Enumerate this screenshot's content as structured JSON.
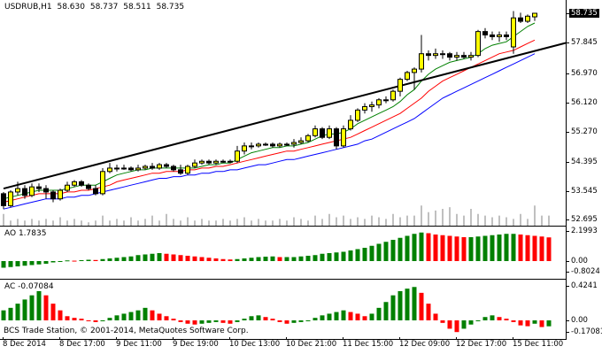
{
  "symbol_label": "USDRUB,H1",
  "ohlc": {
    "open": "58.630",
    "high": "58.737",
    "low": "58.511",
    "close": "58.735"
  },
  "price_axis": {
    "ticks": [
      "57.845",
      "56.970",
      "56.120",
      "55.270",
      "54.395",
      "53.545",
      "52.695"
    ],
    "current": "58.735"
  },
  "ao": {
    "label": "AO 1.7835",
    "ticks": [
      "2.1993",
      "0.00",
      "-0.8024"
    ]
  },
  "ac": {
    "label": "AC -0.07084",
    "ticks": [
      "0.4241",
      "0.00",
      "-0.17081"
    ]
  },
  "time_axis": [
    "8 Dec 2014",
    "8 Dec 17:00",
    "9 Dec 11:00",
    "9 Dec 19:00",
    "10 Dec 13:00",
    "10 Dec 21:00",
    "11 Dec 15:00",
    "12 Dec 09:00",
    "12 Dec 17:00",
    "15 Dec 11:00"
  ],
  "copyright": "BCS Trade Station, © 2001-2014, MetaQuotes Software Corp.",
  "colors": {
    "bull_candle": "#ffff00",
    "bear_candle": "#000000",
    "ma_fast": "#008000",
    "ma_mid": "#ff0000",
    "ma_slow": "#0000ff",
    "trendline": "#000000",
    "up_bar": "#008000",
    "down_bar": "#ff0000",
    "volume": "#808080"
  },
  "chart_data": [
    {
      "type": "candlestick",
      "title": "USDRUB,H1",
      "ylim": [
        52.695,
        58.735
      ],
      "candles": [
        [
          53.45,
          53.5,
          53.0,
          53.1
        ],
        [
          53.1,
          53.55,
          53.05,
          53.5
        ],
        [
          53.5,
          53.8,
          53.4,
          53.6
        ],
        [
          53.6,
          53.7,
          53.3,
          53.4
        ],
        [
          53.4,
          53.75,
          53.35,
          53.65
        ],
        [
          53.65,
          53.75,
          53.5,
          53.6
        ],
        [
          53.6,
          53.7,
          53.3,
          53.5
        ],
        [
          53.5,
          53.55,
          53.2,
          53.3
        ],
        [
          53.3,
          53.6,
          53.25,
          53.55
        ],
        [
          53.55,
          53.8,
          53.5,
          53.7
        ],
        [
          53.7,
          53.85,
          53.65,
          53.8
        ],
        [
          53.8,
          53.85,
          53.65,
          53.7
        ],
        [
          53.7,
          53.75,
          53.55,
          53.6
        ],
        [
          53.6,
          53.7,
          53.4,
          53.45
        ],
        [
          53.45,
          54.2,
          53.4,
          54.1
        ],
        [
          54.1,
          54.35,
          54.05,
          54.2
        ],
        [
          54.2,
          54.3,
          54.1,
          54.2
        ],
        [
          54.2,
          54.3,
          54.15,
          54.2
        ],
        [
          54.2,
          54.25,
          54.1,
          54.15
        ],
        [
          54.15,
          54.3,
          54.1,
          54.2
        ],
        [
          54.2,
          54.3,
          54.15,
          54.25
        ],
        [
          54.25,
          54.35,
          54.15,
          54.2
        ],
        [
          54.2,
          54.35,
          54.15,
          54.3
        ],
        [
          54.3,
          54.35,
          54.2,
          54.25
        ],
        [
          54.25,
          54.3,
          54.1,
          54.15
        ],
        [
          54.15,
          54.3,
          54.0,
          54.05
        ],
        [
          54.05,
          54.3,
          54.0,
          54.25
        ],
        [
          54.25,
          54.45,
          54.2,
          54.35
        ],
        [
          54.35,
          54.45,
          54.3,
          54.4
        ],
        [
          54.4,
          54.45,
          54.3,
          54.35
        ],
        [
          54.35,
          54.45,
          54.3,
          54.4
        ],
        [
          54.4,
          54.45,
          54.35,
          54.4
        ],
        [
          54.4,
          54.45,
          54.35,
          54.4
        ],
        [
          54.4,
          54.85,
          54.35,
          54.7
        ],
        [
          54.7,
          54.95,
          54.6,
          54.85
        ],
        [
          54.85,
          54.95,
          54.75,
          54.85
        ],
        [
          54.85,
          54.95,
          54.8,
          54.9
        ],
        [
          54.9,
          54.95,
          54.85,
          54.9
        ],
        [
          54.9,
          54.95,
          54.8,
          54.85
        ],
        [
          54.85,
          54.95,
          54.8,
          54.9
        ],
        [
          54.9,
          54.95,
          54.85,
          54.9
        ],
        [
          54.9,
          55.05,
          54.8,
          54.95
        ],
        [
          54.95,
          55.1,
          54.9,
          55.0
        ],
        [
          55.0,
          55.2,
          54.95,
          55.15
        ],
        [
          55.15,
          55.45,
          55.1,
          55.35
        ],
        [
          55.35,
          55.4,
          55.05,
          55.1
        ],
        [
          55.1,
          55.45,
          55.05,
          55.35
        ],
        [
          55.35,
          55.4,
          54.75,
          54.85
        ],
        [
          54.85,
          55.45,
          54.8,
          55.35
        ],
        [
          55.35,
          55.75,
          55.3,
          55.6
        ],
        [
          55.6,
          55.95,
          55.55,
          55.9
        ],
        [
          55.9,
          56.1,
          55.8,
          56.0
        ],
        [
          56.0,
          56.15,
          55.85,
          56.05
        ],
        [
          56.05,
          56.25,
          55.95,
          56.2
        ],
        [
          56.2,
          56.3,
          56.1,
          56.2
        ],
        [
          56.2,
          56.5,
          56.15,
          56.45
        ],
        [
          56.45,
          56.85,
          56.3,
          56.8
        ],
        [
          56.8,
          57.05,
          56.75,
          57.0
        ],
        [
          57.0,
          57.15,
          56.5,
          57.1
        ],
        [
          57.1,
          58.1,
          57.0,
          57.55
        ],
        [
          57.55,
          57.65,
          57.35,
          57.5
        ],
        [
          57.5,
          57.7,
          57.4,
          57.55
        ],
        [
          57.55,
          57.65,
          57.4,
          57.55
        ],
        [
          57.55,
          57.6,
          57.35,
          57.45
        ],
        [
          57.45,
          57.6,
          57.35,
          57.5
        ],
        [
          57.5,
          57.6,
          57.4,
          57.45
        ],
        [
          57.45,
          57.6,
          57.35,
          57.5
        ],
        [
          57.5,
          58.25,
          57.45,
          58.2
        ],
        [
          58.2,
          58.3,
          58.0,
          58.1
        ],
        [
          58.1,
          58.2,
          57.95,
          58.05
        ],
        [
          58.05,
          58.2,
          57.9,
          58.1
        ],
        [
          58.1,
          58.2,
          57.95,
          58.05
        ],
        [
          57.75,
          58.8,
          57.55,
          58.6
        ],
        [
          58.6,
          58.75,
          58.45,
          58.5
        ],
        [
          58.5,
          58.7,
          58.45,
          58.65
        ],
        [
          58.63,
          58.737,
          58.511,
          58.735
        ]
      ],
      "ma_fast": [
        53.3,
        53.35,
        53.4,
        53.45,
        53.5,
        53.55,
        53.55,
        53.55,
        53.55,
        53.6,
        53.65,
        53.7,
        53.7,
        53.7,
        53.8,
        53.9,
        54.0,
        54.05,
        54.1,
        54.15,
        54.15,
        54.2,
        54.2,
        54.2,
        54.2,
        54.2,
        54.2,
        54.2,
        54.25,
        54.3,
        54.3,
        54.35,
        54.35,
        54.45,
        54.55,
        54.65,
        54.7,
        54.75,
        54.8,
        54.8,
        54.85,
        54.85,
        54.9,
        54.95,
        55.05,
        55.15,
        55.2,
        55.2,
        55.25,
        55.35,
        55.5,
        55.6,
        55.7,
        55.8,
        55.9,
        56.0,
        56.15,
        56.35,
        56.5,
        56.75,
        56.95,
        57.1,
        57.2,
        57.3,
        57.35,
        57.4,
        57.45,
        57.55,
        57.7,
        57.8,
        57.85,
        57.9,
        58.05,
        58.2,
        58.35,
        58.45
      ],
      "ma_mid": [
        53.2,
        53.25,
        53.3,
        53.35,
        53.4,
        53.45,
        53.45,
        53.45,
        53.45,
        53.5,
        53.5,
        53.55,
        53.55,
        53.6,
        53.65,
        53.7,
        53.8,
        53.85,
        53.9,
        53.95,
        54.0,
        54.05,
        54.05,
        54.1,
        54.1,
        54.1,
        54.15,
        54.15,
        54.2,
        54.2,
        54.25,
        54.25,
        54.3,
        54.35,
        54.4,
        54.45,
        54.5,
        54.55,
        54.6,
        54.65,
        54.7,
        54.7,
        54.75,
        54.8,
        54.85,
        54.9,
        54.95,
        55.0,
        55.05,
        55.1,
        55.2,
        55.3,
        55.4,
        55.5,
        55.6,
        55.7,
        55.8,
        55.95,
        56.1,
        56.25,
        56.45,
        56.6,
        56.75,
        56.85,
        56.95,
        57.05,
        57.15,
        57.25,
        57.35,
        57.45,
        57.55,
        57.6,
        57.65,
        57.75,
        57.85,
        57.95
      ],
      "ma_slow": [
        53.0,
        53.05,
        53.1,
        53.15,
        53.2,
        53.25,
        53.3,
        53.3,
        53.3,
        53.35,
        53.35,
        53.4,
        53.4,
        53.45,
        53.5,
        53.55,
        53.6,
        53.65,
        53.7,
        53.75,
        53.8,
        53.85,
        53.9,
        53.9,
        53.95,
        53.95,
        54.0,
        54.0,
        54.05,
        54.05,
        54.1,
        54.1,
        54.15,
        54.15,
        54.2,
        54.25,
        54.3,
        54.3,
        54.35,
        54.4,
        54.45,
        54.45,
        54.5,
        54.55,
        54.6,
        54.65,
        54.7,
        54.75,
        54.8,
        54.85,
        54.9,
        55.0,
        55.05,
        55.15,
        55.25,
        55.35,
        55.45,
        55.55,
        55.65,
        55.8,
        55.95,
        56.1,
        56.25,
        56.35,
        56.45,
        56.55,
        56.65,
        56.75,
        56.85,
        56.95,
        57.05,
        57.15,
        57.25,
        57.35,
        57.45,
        57.55
      ],
      "trendline": {
        "x": [
          0,
          79
        ],
        "y": [
          53.6,
          57.9
        ]
      },
      "volume": [
        0.35,
        0.15,
        0.2,
        0.15,
        0.2,
        0.15,
        0.2,
        0.15,
        0.25,
        0.15,
        0.2,
        0.15,
        0.1,
        0.15,
        0.3,
        0.15,
        0.2,
        0.15,
        0.25,
        0.15,
        0.2,
        0.3,
        0.15,
        0.35,
        0.2,
        0.15,
        0.25,
        0.15,
        0.2,
        0.15,
        0.15,
        0.2,
        0.15,
        0.2,
        0.25,
        0.15,
        0.2,
        0.15,
        0.15,
        0.2,
        0.15,
        0.25,
        0.2,
        0.15,
        0.3,
        0.2,
        0.35,
        0.25,
        0.3,
        0.2,
        0.25,
        0.2,
        0.3,
        0.25,
        0.2,
        0.35,
        0.25,
        0.3,
        0.3,
        0.6,
        0.4,
        0.45,
        0.5,
        0.55,
        0.35,
        0.3,
        0.5,
        0.35,
        0.3,
        0.25,
        0.3,
        0.25,
        0.2,
        0.35,
        0.2,
        0.6,
        0.3,
        0.3
      ]
    },
    {
      "type": "bar",
      "title": "AO 1.7835",
      "ylim": [
        -0.8024,
        2.1993
      ],
      "values": [
        -0.5,
        -0.45,
        -0.4,
        -0.35,
        -0.3,
        -0.25,
        -0.2,
        -0.1,
        -0.05,
        0.05,
        0.03,
        0.07,
        0.1,
        0.08,
        0.15,
        0.2,
        0.25,
        0.3,
        0.35,
        0.45,
        0.5,
        0.55,
        0.6,
        0.55,
        0.5,
        0.45,
        0.4,
        0.35,
        0.3,
        0.25,
        0.2,
        0.15,
        0.12,
        0.15,
        0.2,
        0.25,
        0.3,
        0.33,
        0.35,
        0.3,
        0.3,
        0.3,
        0.35,
        0.4,
        0.45,
        0.55,
        0.6,
        0.65,
        0.7,
        0.8,
        0.9,
        1.0,
        1.15,
        1.3,
        1.45,
        1.6,
        1.75,
        1.9,
        2.05,
        2.15,
        2.1,
        2.0,
        1.95,
        1.9,
        1.85,
        1.8,
        1.8,
        1.85,
        1.9,
        1.95,
        2.0,
        2.05,
        2.05,
        2.0,
        1.95,
        1.9,
        1.85,
        1.7835
      ]
    },
    {
      "type": "bar",
      "title": "AC -0.07084",
      "ylim": [
        -0.17081,
        0.4241
      ],
      "values": [
        0.12,
        0.15,
        0.2,
        0.25,
        0.3,
        0.35,
        0.3,
        0.2,
        0.12,
        0.05,
        0.03,
        0.02,
        0.0,
        -0.02,
        0.0,
        0.03,
        0.06,
        0.08,
        0.1,
        0.12,
        0.15,
        0.12,
        0.08,
        0.05,
        0.02,
        -0.02,
        -0.04,
        -0.05,
        -0.04,
        -0.03,
        -0.02,
        -0.03,
        -0.04,
        -0.02,
        0.02,
        0.05,
        0.06,
        0.04,
        0.02,
        -0.02,
        -0.04,
        -0.03,
        -0.02,
        0.0,
        0.03,
        0.06,
        0.08,
        0.1,
        0.12,
        0.1,
        0.08,
        0.05,
        0.08,
        0.15,
        0.22,
        0.3,
        0.35,
        0.38,
        0.4,
        0.33,
        0.2,
        0.08,
        -0.03,
        -0.1,
        -0.14,
        -0.1,
        -0.05,
        0.0,
        0.04,
        0.06,
        0.04,
        0.02,
        -0.02,
        -0.06,
        -0.07,
        -0.04,
        -0.08,
        -0.07084
      ]
    }
  ]
}
